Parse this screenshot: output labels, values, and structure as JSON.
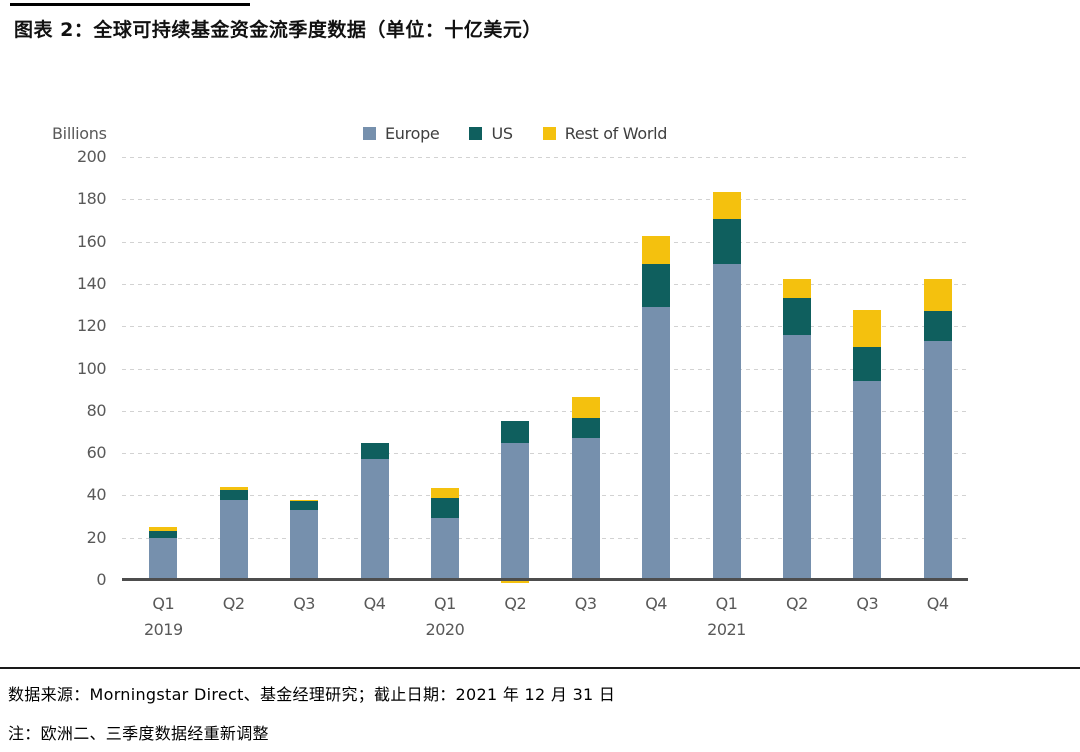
{
  "header": {
    "title": "图表 2：全球可持续基金资金流季度数据（单位：十亿美元）"
  },
  "chart_data": {
    "type": "bar",
    "stacked": true,
    "title": "全球可持续基金资金流季度数据",
    "y_axis_label": "Billions",
    "unit": "十亿美元 (Billions USD)",
    "categories": [
      "Q1",
      "Q2",
      "Q3",
      "Q4",
      "Q1",
      "Q2",
      "Q3",
      "Q4",
      "Q1",
      "Q2",
      "Q3",
      "Q4"
    ],
    "year_labels": [
      {
        "index": 0,
        "label": "2019"
      },
      {
        "index": 4,
        "label": "2020"
      },
      {
        "index": 8,
        "label": "2021"
      }
    ],
    "series": [
      {
        "name": "Europe",
        "color": "#7690AD",
        "values": [
          20,
          38,
          33,
          57,
          29.5,
          65,
          67,
          129,
          149.5,
          116,
          94,
          113
        ]
      },
      {
        "name": "US",
        "color": "#0F5F5E",
        "values": [
          3,
          4.5,
          4.5,
          8,
          9.5,
          10,
          9.5,
          20.5,
          21,
          17.5,
          16,
          14
        ]
      },
      {
        "name": "Rest of World",
        "color": "#F4C10E",
        "values": [
          2,
          1.5,
          0.5,
          0,
          4.5,
          -1.5,
          10,
          13,
          13,
          9,
          17.5,
          15.5
        ]
      }
    ],
    "ylim": [
      0,
      200
    ],
    "ytick_step": 20,
    "grid": "horizontal-dashed",
    "legend_position": "top-center",
    "style": {
      "gridline_color": "#d2d2d2",
      "axis_color": "#4d4d4d",
      "tick_label_color": "#595959"
    }
  },
  "footer": {
    "source": "数据来源：Morningstar Direct、基金经理研究；截止日期：2021 年 12 月 31 日",
    "note": "注：欧洲二、三季度数据经重新调整"
  }
}
